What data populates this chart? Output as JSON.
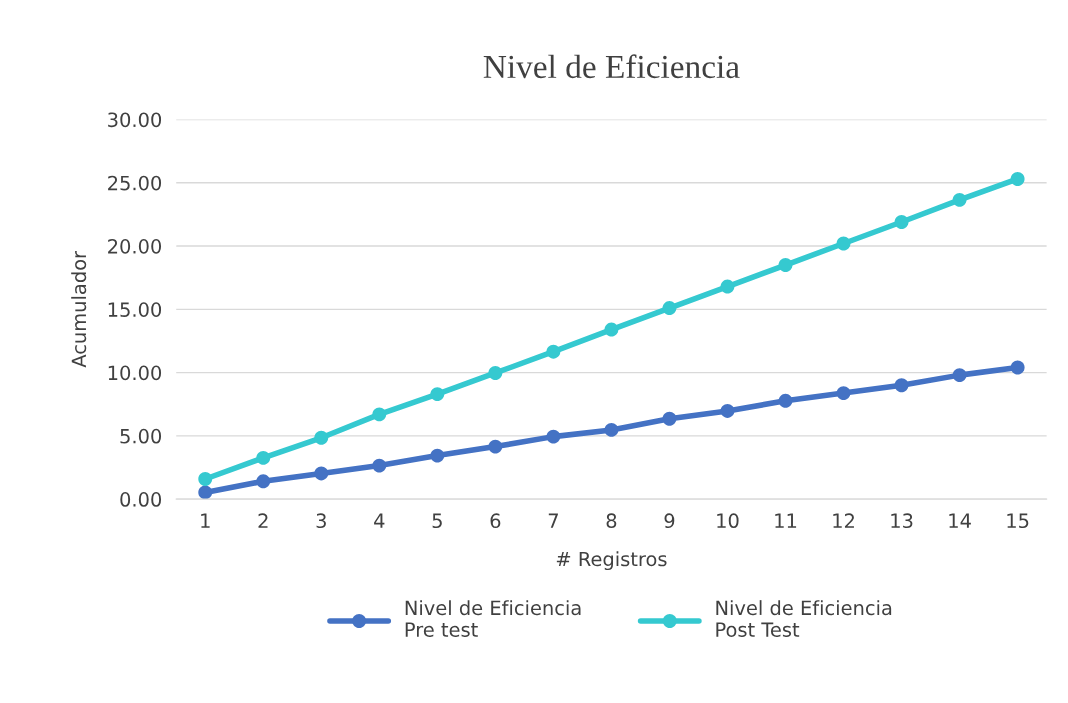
{
  "chart_data": {
    "type": "line",
    "title": "Nivel de Eficiencia",
    "xlabel": "# Registros",
    "ylabel": "Acumulador",
    "categories": [
      "1",
      "2",
      "3",
      "4",
      "5",
      "6",
      "7",
      "8",
      "9",
      "10",
      "11",
      "12",
      "13",
      "14",
      "15"
    ],
    "series": [
      {
        "name": "Nivel de Eficiencia\nPre test",
        "color": "#4472c4",
        "values": [
          0.53,
          1.41,
          2.03,
          2.65,
          3.44,
          4.15,
          4.94,
          5.47,
          6.35,
          6.97,
          7.77,
          8.38,
          9.0,
          9.8,
          10.4
        ]
      },
      {
        "name": "Nivel de Eficiencia\nPost Test",
        "color": "#35c9d0",
        "values": [
          1.59,
          3.26,
          4.85,
          6.7,
          8.3,
          9.97,
          11.65,
          13.4,
          15.1,
          16.8,
          18.5,
          20.2,
          21.9,
          23.65,
          25.3
        ]
      }
    ],
    "ylim": [
      0,
      30
    ],
    "yticks": [
      {
        "value": 0,
        "label": "0.00"
      },
      {
        "value": 5,
        "label": "5.00"
      },
      {
        "value": 10,
        "label": "10.00"
      },
      {
        "value": 15,
        "label": "15.00"
      },
      {
        "value": 20,
        "label": "20.00"
      },
      {
        "value": 25,
        "label": "25.00"
      },
      {
        "value": 30,
        "label": "30.00"
      }
    ],
    "grid": "y",
    "legend": "bottom",
    "marker": "circle",
    "line_style": "solid"
  }
}
